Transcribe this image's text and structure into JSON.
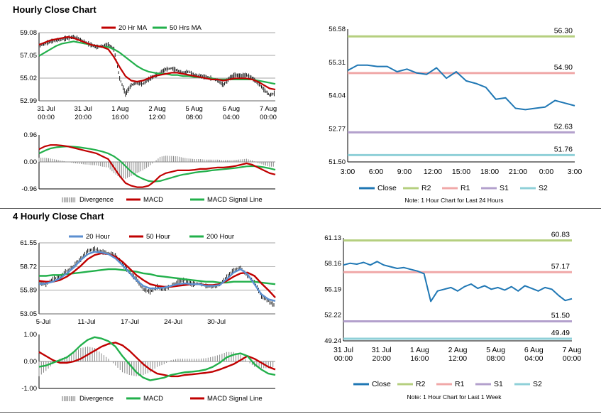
{
  "sections": {
    "hourly_title": "Hourly Close Chart",
    "four_hourly_title": "4 Hourly Close Chart"
  },
  "colors": {
    "ma20": "#c00000",
    "ma50": "#22b04b",
    "ma20_4h": "#5b8fd0",
    "close_line": "#1f77b4",
    "price_bars": "#000000",
    "divergence": "#888888",
    "r2": "#b5cf7f",
    "r1": "#f0a8a8",
    "s1": "#b3a0cc",
    "s2": "#8fd0d8",
    "grid": "#888888"
  },
  "chart_data": [
    {
      "id": "hourly-price",
      "type": "line",
      "legend": [
        "20 Hr MA",
        "50 Hrs MA"
      ],
      "yticks": [
        "59.08",
        "57.05",
        "55.02",
        "52.99"
      ],
      "ylim": [
        52.99,
        59.08
      ],
      "xticks": [
        [
          "31 Jul",
          "00:00"
        ],
        [
          "31 Jul",
          "20:00"
        ],
        [
          "1 Aug",
          "16:00"
        ],
        [
          "2 Aug",
          "12:00"
        ],
        [
          "5 Aug",
          "08:00"
        ],
        [
          "6 Aug",
          "04:00"
        ],
        [
          "7 Aug",
          "00:00"
        ]
      ],
      "close": [
        57.9,
        58.1,
        58.3,
        58.4,
        58.5,
        58.6,
        58.7,
        58.5,
        58.2,
        58.0,
        57.8,
        57.9,
        58.0,
        57.6,
        55.0,
        53.6,
        54.4,
        54.6,
        54.5,
        54.9,
        55.2,
        55.5,
        55.8,
        55.9,
        55.7,
        55.5,
        55.6,
        55.3,
        55.2,
        55.1,
        55.0,
        54.8,
        54.4,
        55.0,
        55.3,
        55.2,
        55.3,
        55.0,
        54.6,
        54.0,
        53.5,
        53.7
      ],
      "ma20": [
        58.0,
        58.2,
        58.4,
        58.5,
        58.6,
        58.7,
        58.6,
        58.4,
        58.2,
        58.0,
        57.9,
        57.8,
        57.6,
        56.9,
        56.0,
        55.2,
        54.8,
        54.7,
        54.8,
        55.0,
        55.2,
        55.3,
        55.4,
        55.5,
        55.5,
        55.4,
        55.3,
        55.2,
        55.1,
        55.0,
        54.9,
        54.9,
        54.8,
        54.9,
        55.0,
        55.0,
        55.0,
        54.9,
        54.7,
        54.4,
        54.1,
        54.0
      ],
      "ma50": [
        57.0,
        57.3,
        57.6,
        57.9,
        58.1,
        58.2,
        58.3,
        58.2,
        58.1,
        58.0,
        57.9,
        57.8,
        57.8,
        57.6,
        57.3,
        56.9,
        56.5,
        56.1,
        55.8,
        55.6,
        55.5,
        55.4,
        55.4,
        55.3,
        55.3,
        55.2,
        55.2,
        55.1,
        55.1,
        55.0,
        55.0,
        54.9,
        54.9,
        54.9,
        54.9,
        54.9,
        54.9,
        54.9,
        54.8,
        54.7,
        54.6,
        54.5
      ]
    },
    {
      "id": "hourly-macd",
      "type": "line",
      "legend": [
        "Divergence",
        "MACD",
        "MACD Signal Line"
      ],
      "yticks": [
        "0.96",
        "0.00",
        "-0.96"
      ],
      "ylim": [
        -0.96,
        0.96
      ],
      "macd": [
        0.45,
        0.55,
        0.6,
        0.6,
        0.58,
        0.55,
        0.5,
        0.45,
        0.4,
        0.35,
        0.3,
        0.2,
        0.1,
        -0.2,
        -0.5,
        -0.75,
        -0.85,
        -0.9,
        -0.9,
        -0.85,
        -0.7,
        -0.5,
        -0.4,
        -0.35,
        -0.3,
        -0.3,
        -0.3,
        -0.28,
        -0.25,
        -0.25,
        -0.22,
        -0.2,
        -0.2,
        -0.18,
        -0.15,
        -0.1,
        -0.05,
        -0.1,
        -0.2,
        -0.3,
        -0.4,
        -0.45
      ],
      "signal": [
        0.3,
        0.4,
        0.48,
        0.52,
        0.54,
        0.55,
        0.54,
        0.52,
        0.49,
        0.46,
        0.42,
        0.37,
        0.3,
        0.2,
        0.05,
        -0.15,
        -0.35,
        -0.5,
        -0.6,
        -0.68,
        -0.7,
        -0.68,
        -0.62,
        -0.56,
        -0.5,
        -0.45,
        -0.42,
        -0.38,
        -0.35,
        -0.33,
        -0.3,
        -0.28,
        -0.26,
        -0.24,
        -0.22,
        -0.19,
        -0.16,
        -0.15,
        -0.16,
        -0.19,
        -0.23,
        -0.28
      ]
    },
    {
      "id": "hourly-levels",
      "type": "line",
      "yticks": [
        "56.58",
        "55.31",
        "54.04",
        "52.77",
        "51.50"
      ],
      "ylim": [
        51.5,
        56.58
      ],
      "xticks": [
        "3:00",
        "6:00",
        "9:00",
        "12:00",
        "15:00",
        "18:00",
        "21:00",
        "0:00",
        "3:00"
      ],
      "levels": [
        {
          "name": "R2",
          "value": 56.3,
          "label": "56.30"
        },
        {
          "name": "R1",
          "value": 54.9,
          "label": "54.90"
        },
        {
          "name": "S1",
          "value": 52.63,
          "label": "52.63"
        },
        {
          "name": "S2",
          "value": 51.76,
          "label": "51.76"
        }
      ],
      "close": [
        55.0,
        55.2,
        55.2,
        55.15,
        55.15,
        54.95,
        55.05,
        54.9,
        54.85,
        55.1,
        54.7,
        54.95,
        54.6,
        54.5,
        54.35,
        53.9,
        53.95,
        53.55,
        53.5,
        53.55,
        53.6,
        53.85,
        53.75,
        53.65
      ],
      "legend": [
        "Close",
        "R2",
        "R1",
        "S1",
        "S2"
      ],
      "note": "Note: 1 Hour Chart for Last 24 Hours"
    },
    {
      "id": "fourhourly-price",
      "type": "line",
      "legend": [
        "20 Hour",
        "50 Hour",
        "200 Hour"
      ],
      "yticks": [
        "61.55",
        "58.72",
        "55.89",
        "53.05"
      ],
      "ylim": [
        53.05,
        61.55
      ],
      "xticks": [
        "5-Jul",
        "11-Jul",
        "17-Jul",
        "24-Jul",
        "30-Jul"
      ],
      "close": [
        56.8,
        56.6,
        57.2,
        57.5,
        58.2,
        58.8,
        59.6,
        60.6,
        60.8,
        60.5,
        60.3,
        60.1,
        59.0,
        58.0,
        57.2,
        56.0,
        55.7,
        56.3,
        56.0,
        56.4,
        56.9,
        57.1,
        56.6,
        56.7,
        56.4,
        56.3,
        56.5,
        57.5,
        58.3,
        58.6,
        57.6,
        56.8,
        55.2,
        54.6,
        54.0
      ],
      "ma20": [
        56.6,
        56.7,
        56.9,
        57.3,
        57.9,
        58.6,
        59.5,
        60.2,
        60.5,
        60.4,
        60.2,
        59.7,
        58.9,
        58.0,
        57.1,
        56.4,
        56.1,
        56.1,
        56.2,
        56.4,
        56.6,
        56.7,
        56.6,
        56.6,
        56.4,
        56.4,
        56.5,
        57.2,
        58.0,
        58.4,
        57.8,
        56.6,
        55.4,
        54.8,
        54.6
      ],
      "ma50": [
        57.0,
        56.9,
        56.9,
        57.1,
        57.5,
        58.1,
        58.8,
        59.6,
        60.1,
        60.3,
        60.2,
        59.9,
        59.3,
        58.5,
        57.7,
        57.1,
        56.6,
        56.4,
        56.3,
        56.3,
        56.4,
        56.5,
        56.6,
        56.6,
        56.5,
        56.5,
        56.6,
        57.0,
        57.5,
        57.9,
        58.0,
        57.6,
        56.7,
        55.9,
        55.0
      ],
      "ma200": [
        57.6,
        57.6,
        57.7,
        57.7,
        57.8,
        57.9,
        58.0,
        58.1,
        58.2,
        58.3,
        58.4,
        58.4,
        58.3,
        58.2,
        58.1,
        57.9,
        57.8,
        57.6,
        57.5,
        57.4,
        57.3,
        57.2,
        57.1,
        57.0,
        56.9,
        56.9,
        56.8,
        56.8,
        56.9,
        56.9,
        56.9,
        56.9,
        56.8,
        56.7,
        56.6
      ]
    },
    {
      "id": "fourhourly-macd",
      "type": "line",
      "legend": [
        "Divergence",
        "MACD",
        "MACD Signal Line"
      ],
      "yticks": [
        "1.00",
        "0.00",
        "-1.00"
      ],
      "ylim": [
        -1.0,
        1.0
      ],
      "macd": [
        -0.2,
        -0.15,
        -0.05,
        0.05,
        0.15,
        0.35,
        0.6,
        0.8,
        0.9,
        0.85,
        0.75,
        0.55,
        0.2,
        -0.1,
        -0.4,
        -0.6,
        -0.7,
        -0.65,
        -0.6,
        -0.5,
        -0.45,
        -0.4,
        -0.38,
        -0.35,
        -0.3,
        -0.2,
        -0.05,
        0.15,
        0.25,
        0.3,
        0.2,
        -0.1,
        -0.3,
        -0.45,
        -0.5
      ],
      "signal": [
        0.35,
        0.2,
        0.05,
        -0.05,
        -0.05,
        0.0,
        0.1,
        0.25,
        0.4,
        0.55,
        0.65,
        0.7,
        0.6,
        0.4,
        0.15,
        -0.1,
        -0.3,
        -0.45,
        -0.5,
        -0.55,
        -0.55,
        -0.5,
        -0.48,
        -0.45,
        -0.42,
        -0.38,
        -0.3,
        -0.2,
        -0.1,
        0.05,
        0.2,
        0.1,
        -0.05,
        -0.2,
        -0.3
      ]
    },
    {
      "id": "fourhourly-levels",
      "type": "line",
      "yticks": [
        "61.13",
        "58.16",
        "55.19",
        "52.22",
        "49.24"
      ],
      "ylim": [
        49.24,
        61.13
      ],
      "xticks": [
        [
          "31 Jul",
          "00:00"
        ],
        [
          "31 Jul",
          "20:00"
        ],
        [
          "1 Aug",
          "16:00"
        ],
        [
          "2 Aug",
          "12:00"
        ],
        [
          "5 Aug",
          "08:00"
        ],
        [
          "6 Aug",
          "04:00"
        ],
        [
          "7 Aug",
          "00:00"
        ]
      ],
      "levels": [
        {
          "name": "R2",
          "value": 60.83,
          "label": "60.83"
        },
        {
          "name": "R1",
          "value": 57.17,
          "label": "57.17"
        },
        {
          "name": "S1",
          "value": 51.5,
          "label": "51.50"
        },
        {
          "name": "S2",
          "value": 49.49,
          "label": "49.49"
        }
      ],
      "close": [
        58.0,
        58.2,
        58.1,
        58.3,
        58.0,
        58.4,
        58.0,
        57.8,
        57.6,
        57.7,
        57.5,
        57.3,
        57.0,
        53.8,
        55.0,
        55.2,
        55.4,
        55.0,
        55.5,
        55.8,
        55.3,
        55.6,
        55.2,
        55.4,
        55.1,
        55.5,
        55.0,
        55.6,
        55.3,
        55.0,
        55.4,
        55.2,
        54.5,
        53.9,
        54.1
      ],
      "legend": [
        "Close",
        "R2",
        "R1",
        "S1",
        "S2"
      ],
      "note": "Note: 1 Hour Chart for Last 1 Week"
    }
  ]
}
